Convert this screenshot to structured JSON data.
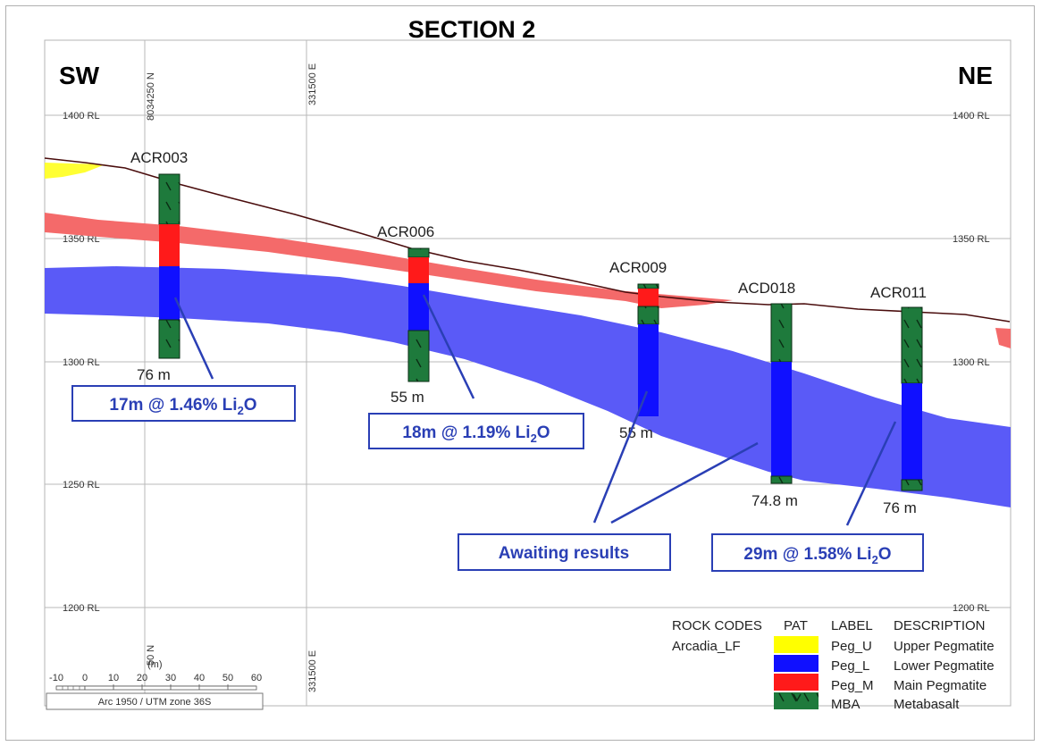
{
  "section_title": "SECTION 2",
  "direction": {
    "left": "SW",
    "right": "NE"
  },
  "grid": {
    "rl_labels": [
      "1400 RL",
      "1350 RL",
      "1300 RL",
      "1250 RL",
      "1200 RL"
    ],
    "northing_top": "8034250 N",
    "easting_top": "331500 E",
    "northing_bottom": "50 N",
    "easting_bottom": "331500 E"
  },
  "holes": [
    {
      "id": "ACR003",
      "depth": "76 m"
    },
    {
      "id": "ACR006",
      "depth": "55 m"
    },
    {
      "id": "ACR009",
      "depth": "55 m"
    },
    {
      "id": "ACD018",
      "depth": "74.8 m"
    },
    {
      "id": "ACR011",
      "depth": "76 m"
    }
  ],
  "callouts": [
    {
      "text": "17m @ 1.46% Li",
      "sub": "2",
      "tail": "O"
    },
    {
      "text": "18m @ 1.19% Li",
      "sub": "2",
      "tail": "O"
    },
    {
      "text": "Awaiting results",
      "sub": "",
      "tail": ""
    },
    {
      "text": "29m @ 1.58% Li",
      "sub": "2",
      "tail": "O"
    }
  ],
  "scale": {
    "unit": "(m)",
    "ticks": [
      "-10",
      "0",
      "10",
      "20",
      "30",
      "40",
      "50",
      "60"
    ],
    "projection": "Arc 1950 / UTM zone 36S"
  },
  "legend": {
    "headers": [
      "ROCK CODES",
      "PAT",
      "LABEL",
      "DESCRIPTION"
    ],
    "rock_code": "Arcadia_LF",
    "items": [
      {
        "label": "Peg_U",
        "description": "Upper Pegmatite",
        "color": "#ffff00"
      },
      {
        "label": "Peg_L",
        "description": "Lower Pegmatite",
        "color": "#1010ff"
      },
      {
        "label": "Peg_M",
        "description": "Main Pegmatite",
        "color": "#ff1a1a"
      },
      {
        "label": "MBA",
        "description": "Metabasalt",
        "color": "#1e7a3c"
      }
    ]
  },
  "colors": {
    "lower_pegmatite_band": "#5a5af7",
    "main_pegmatite_band": "#f46a6a",
    "callout_border": "#2a3fb5",
    "callout_text": "#2a3fb5",
    "topography": "#4a0d0d"
  }
}
